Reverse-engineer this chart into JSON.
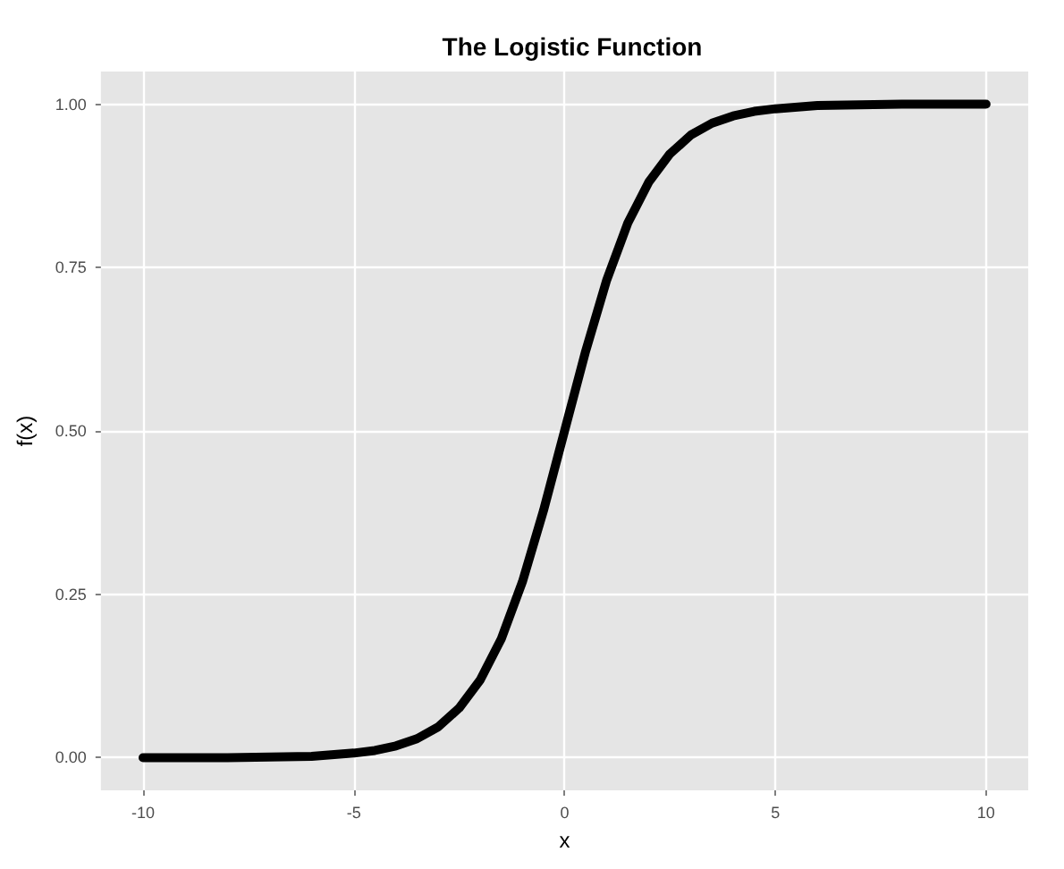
{
  "chart_data": {
    "type": "line",
    "title": "The Logistic Function",
    "xlabel": "x",
    "ylabel": "f(x)",
    "x": [
      -10,
      -9,
      -8,
      -7,
      -6,
      -5,
      -4.5,
      -4,
      -3.5,
      -3,
      -2.5,
      -2,
      -1.5,
      -1,
      -0.5,
      0,
      0.5,
      1,
      1.5,
      2,
      2.5,
      3,
      3.5,
      4,
      4.5,
      5,
      6,
      7,
      8,
      9,
      10
    ],
    "series": [
      {
        "color": "#000000",
        "values": [
          0.0,
          0.0,
          0.0,
          0.001,
          0.002,
          0.007,
          0.011,
          0.018,
          0.029,
          0.047,
          0.076,
          0.119,
          0.182,
          0.269,
          0.378,
          0.5,
          0.622,
          0.731,
          0.818,
          0.881,
          0.924,
          0.953,
          0.971,
          0.982,
          0.989,
          0.993,
          0.998,
          0.999,
          1.0,
          1.0,
          1.0
        ]
      }
    ],
    "xlim": [
      -11,
      11
    ],
    "xticks": [
      -10,
      -5,
      0,
      5,
      10
    ],
    "ylim": [
      -0.05,
      1.05
    ],
    "yticks": [
      {
        "value": 0,
        "label": "0.00"
      },
      {
        "value": 0.25,
        "label": "0.25"
      },
      {
        "value": 0.5,
        "label": "0.50"
      },
      {
        "value": 0.75,
        "label": "0.75"
      },
      {
        "value": 1,
        "label": "1.00"
      }
    ],
    "grid": true,
    "marker": "none",
    "line_style": "solid"
  }
}
